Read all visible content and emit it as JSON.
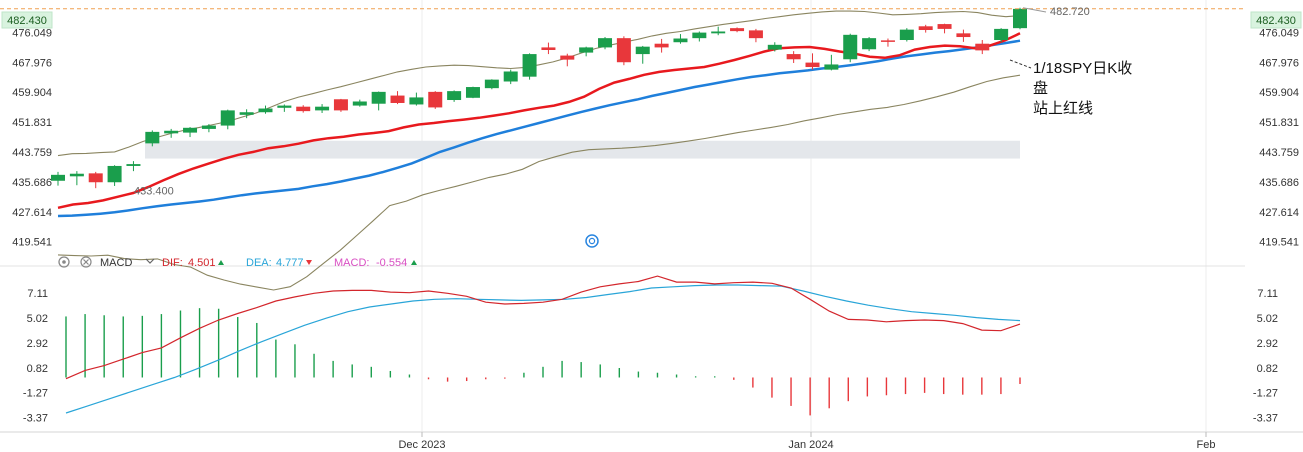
{
  "chart_data": {
    "type": "candlestick",
    "price_axis": {
      "ticks": [
        "482.430",
        "476.049",
        "467.976",
        "459.904",
        "451.831",
        "443.759",
        "435.686",
        "427.614",
        "419.541"
      ],
      "range": [
        416.5,
        484.8
      ],
      "last_price_label": "482.430",
      "last_price": 482.43
    },
    "annotations": {
      "high_label": "482.720",
      "high_value": 482.72,
      "low_label": "433.400",
      "low_value": 433.4,
      "note_lines": [
        "1/18SPY日K收",
        "盘",
        "站上红线"
      ]
    },
    "zone": {
      "from": 442.0,
      "to": 446.8
    },
    "candles": [
      {
        "o": 436.0,
        "c": 437.6,
        "h": 438.4,
        "l": 434.7
      },
      {
        "o": 437.2,
        "c": 437.9,
        "h": 438.6,
        "l": 434.8
      },
      {
        "o": 438.0,
        "c": 435.6,
        "h": 438.4,
        "l": 434.0
      },
      {
        "o": 435.6,
        "c": 440.0,
        "h": 440.2,
        "l": 434.6
      },
      {
        "o": 440.0,
        "c": 440.5,
        "h": 441.3,
        "l": 438.6
      },
      {
        "o": 446.1,
        "c": 449.2,
        "h": 449.6,
        "l": 445.3
      },
      {
        "o": 448.8,
        "c": 449.5,
        "h": 450.0,
        "l": 447.6
      },
      {
        "o": 449.0,
        "c": 450.3,
        "h": 450.5,
        "l": 447.8
      },
      {
        "o": 450.0,
        "c": 450.9,
        "h": 451.3,
        "l": 449.1
      },
      {
        "o": 450.9,
        "c": 455.0,
        "h": 455.2,
        "l": 449.9
      },
      {
        "o": 453.8,
        "c": 454.5,
        "h": 455.3,
        "l": 452.9
      },
      {
        "o": 454.5,
        "c": 455.5,
        "h": 456.3,
        "l": 454.1
      },
      {
        "o": 455.7,
        "c": 456.3,
        "h": 456.6,
        "l": 454.6
      },
      {
        "o": 456.0,
        "c": 454.8,
        "h": 456.4,
        "l": 454.4
      },
      {
        "o": 455.0,
        "c": 456.0,
        "h": 456.7,
        "l": 454.3
      },
      {
        "o": 458.0,
        "c": 455.0,
        "h": 458.1,
        "l": 454.6
      },
      {
        "o": 456.3,
        "c": 457.4,
        "h": 457.9,
        "l": 456.0
      },
      {
        "o": 456.8,
        "c": 460.0,
        "h": 460.1,
        "l": 455.0
      },
      {
        "o": 459.0,
        "c": 457.0,
        "h": 460.2,
        "l": 456.7
      },
      {
        "o": 456.6,
        "c": 458.5,
        "h": 459.8,
        "l": 456.3
      },
      {
        "o": 460.0,
        "c": 455.8,
        "h": 460.2,
        "l": 455.4
      },
      {
        "o": 457.8,
        "c": 460.2,
        "h": 460.4,
        "l": 457.3
      },
      {
        "o": 458.4,
        "c": 461.3,
        "h": 461.4,
        "l": 458.3
      },
      {
        "o": 461.0,
        "c": 463.3,
        "h": 463.4,
        "l": 460.7
      },
      {
        "o": 462.8,
        "c": 465.5,
        "h": 466.0,
        "l": 462.1
      },
      {
        "o": 464.1,
        "c": 470.2,
        "h": 470.4,
        "l": 463.3
      },
      {
        "o": 472.0,
        "c": 471.3,
        "h": 473.3,
        "l": 470.2
      },
      {
        "o": 469.8,
        "c": 468.7,
        "h": 470.3,
        "l": 466.9
      },
      {
        "o": 470.6,
        "c": 472.0,
        "h": 472.2,
        "l": 469.6
      },
      {
        "o": 472.0,
        "c": 474.5,
        "h": 474.8,
        "l": 471.5
      },
      {
        "o": 474.5,
        "c": 468.0,
        "h": 475.0,
        "l": 467.2
      },
      {
        "o": 470.2,
        "c": 472.2,
        "h": 472.4,
        "l": 467.6
      },
      {
        "o": 473.0,
        "c": 472.0,
        "h": 474.3,
        "l": 470.6
      },
      {
        "o": 473.4,
        "c": 474.4,
        "h": 475.6,
        "l": 473.0
      },
      {
        "o": 474.5,
        "c": 476.0,
        "h": 476.3,
        "l": 473.6
      },
      {
        "o": 475.8,
        "c": 476.3,
        "h": 477.6,
        "l": 475.3
      },
      {
        "o": 477.2,
        "c": 476.4,
        "h": 477.4,
        "l": 476.1
      },
      {
        "o": 476.6,
        "c": 474.5,
        "h": 477.0,
        "l": 473.4
      },
      {
        "o": 471.4,
        "c": 472.7,
        "h": 473.4,
        "l": 470.9
      },
      {
        "o": 470.2,
        "c": 468.8,
        "h": 471.0,
        "l": 467.8
      },
      {
        "o": 467.9,
        "c": 466.7,
        "h": 470.4,
        "l": 466.0
      },
      {
        "o": 466.0,
        "c": 467.4,
        "h": 470.0,
        "l": 465.8
      },
      {
        "o": 468.8,
        "c": 475.4,
        "h": 475.7,
        "l": 468.0
      },
      {
        "o": 471.5,
        "c": 474.5,
        "h": 474.8,
        "l": 471.0
      },
      {
        "o": 473.9,
        "c": 473.5,
        "h": 474.4,
        "l": 472.2
      },
      {
        "o": 474.0,
        "c": 476.8,
        "h": 477.2,
        "l": 473.6
      },
      {
        "o": 477.7,
        "c": 476.7,
        "h": 478.1,
        "l": 476.0
      },
      {
        "o": 478.3,
        "c": 477.0,
        "h": 478.4,
        "l": 475.8
      },
      {
        "o": 475.8,
        "c": 474.8,
        "h": 476.8,
        "l": 473.5
      },
      {
        "o": 473.0,
        "c": 471.2,
        "h": 474.0,
        "l": 470.2
      },
      {
        "o": 474.0,
        "c": 477.0,
        "h": 477.2,
        "l": 473.4
      },
      {
        "o": 477.2,
        "c": 482.4,
        "h": 482.7,
        "l": 476.9
      }
    ],
    "red_line": [
      428.7,
      429.6,
      430.0,
      430.7,
      431.7,
      432.7,
      434.3,
      436.1,
      437.8,
      439.3,
      440.6,
      441.9,
      443.0,
      443.8,
      444.8,
      445.3,
      446.0,
      446.9,
      447.5,
      447.9,
      448.5,
      448.9,
      449.4,
      450.4,
      451.2,
      451.6,
      452.1,
      452.5,
      453.0,
      453.6,
      454.2,
      455.0,
      455.7,
      456.3,
      457.3,
      458.7,
      460.8,
      462.5,
      463.5,
      464.6,
      465.4,
      465.9,
      466.3,
      466.7,
      467.6,
      468.6,
      469.7,
      470.9,
      471.8,
      472.0,
      472.1,
      471.6,
      470.9,
      470.3,
      469.5,
      469.2,
      469.9,
      471.4,
      472.1,
      472.5,
      472.3,
      471.8,
      472.5,
      473.9,
      475.8
    ],
    "blue_line": [
      426.5,
      426.6,
      426.8,
      427.1,
      427.5,
      428.0,
      428.6,
      429.1,
      429.6,
      430.0,
      430.4,
      430.9,
      431.5,
      432.1,
      432.6,
      433.0,
      433.4,
      433.8,
      434.5,
      435.1,
      435.8,
      436.6,
      437.4,
      438.4,
      439.5,
      440.7,
      442.2,
      443.8,
      445.0,
      446.3,
      447.5,
      448.6,
      449.6,
      450.6,
      451.6,
      452.6,
      453.6,
      454.6,
      455.5,
      456.4,
      457.2,
      458.0,
      458.9,
      459.7,
      460.5,
      461.3,
      462.0,
      462.7,
      463.4,
      464.0,
      464.5,
      465.0,
      465.4,
      465.8,
      466.3,
      466.7,
      467.2,
      467.7,
      468.3,
      469.0,
      469.6,
      470.1,
      470.6,
      471.0,
      471.5,
      472.0,
      472.6,
      473.2,
      473.8
    ],
    "boll_upper": [
      442.8,
      443.3,
      443.4,
      443.6,
      443.8,
      445.1,
      446.6,
      447.7,
      448.8,
      449.7,
      450.4,
      451.2,
      452.0,
      453.2,
      454.3,
      455.8,
      457.4,
      458.6,
      459.5,
      460.5,
      461.4,
      462.4,
      463.4,
      464.4,
      465.4,
      466.1,
      466.7,
      467.0,
      467.2,
      467.1,
      466.8,
      466.5,
      466.3,
      466.6,
      467.3,
      468.1,
      469.2,
      470.5,
      471.7,
      472.6,
      473.4,
      474.2,
      475.1,
      475.8,
      476.3,
      477.0,
      477.6,
      478.2,
      478.7,
      479.2,
      479.8,
      480.3,
      480.8,
      481.2,
      481.6,
      481.8,
      481.8,
      481.7,
      481.3,
      480.8,
      480.9,
      481.1,
      481.4,
      481.6,
      481.7,
      481.4,
      480.7,
      480.3,
      480.6
    ],
    "boll_lower": [
      416.0,
      415.8,
      415.7,
      415.9,
      415.0,
      414.7,
      414.9,
      413.4,
      412.7,
      410.5,
      409.2,
      408.1,
      407.3,
      406.5,
      407.4,
      410.1,
      413.7,
      417.2,
      421.2,
      425.2,
      429.3,
      430.5,
      432.2,
      433.4,
      434.5,
      435.7,
      436.9,
      437.8,
      439.1,
      441.2,
      442.5,
      443.7,
      444.4,
      444.6,
      444.8,
      445.1,
      445.5,
      446.1,
      446.7,
      447.4,
      448.2,
      449.0,
      449.7,
      450.4,
      451.2,
      452.2,
      453.0,
      453.9,
      454.6,
      455.3,
      455.8,
      456.6,
      457.6,
      458.7,
      459.9,
      461.4,
      462.8,
      463.8,
      464.5
    ],
    "macd": {
      "ticks": [
        "7.11",
        "5.02",
        "2.92",
        "0.82",
        "-1.27",
        "-3.37"
      ],
      "range": [
        -4.6,
        8.9
      ],
      "labels": {
        "name": "MACD",
        "dif_name": "DIF:",
        "dif": "4.501",
        "dea_name": "DEA:",
        "dea": "4.777",
        "hist_name": "MACD:",
        "hist": "-0.554"
      },
      "dif_line": [
        -0.1,
        0.6,
        1.0,
        1.55,
        2.1,
        2.5,
        3.35,
        4.15,
        4.85,
        5.4,
        5.9,
        6.45,
        6.8,
        7.1,
        7.3,
        7.35,
        7.35,
        7.2,
        7.15,
        7.3,
        7.1,
        6.85,
        6.35,
        6.2,
        6.25,
        6.35,
        6.6,
        7.2,
        7.65,
        7.9,
        8.1,
        8.55,
        8.05,
        8.05,
        7.9,
        8.0,
        8.05,
        7.95,
        7.55,
        6.6,
        5.6,
        4.9,
        4.85,
        4.7,
        4.8,
        4.85,
        4.8,
        4.55,
        4.0,
        3.95,
        4.5
      ],
      "dea_line": [
        -3.0,
        -2.4,
        -1.8,
        -1.2,
        -0.6,
        0.0,
        0.7,
        1.45,
        2.25,
        3.0,
        3.7,
        4.4,
        5.0,
        5.55,
        5.95,
        6.2,
        6.45,
        6.6,
        6.65,
        6.6,
        6.55,
        6.5,
        6.55,
        6.6,
        6.75,
        7.0,
        7.25,
        7.55,
        7.65,
        7.75,
        7.8,
        7.8,
        7.75,
        7.7,
        7.3,
        6.85,
        6.45,
        6.1,
        5.8,
        5.55,
        5.4,
        5.25,
        5.05,
        4.9,
        4.8
      ],
      "histogram": [
        5.15,
        5.35,
        5.25,
        5.15,
        5.2,
        5.35,
        5.65,
        5.85,
        5.8,
        5.1,
        4.6,
        3.2,
        2.8,
        2.0,
        1.4,
        1.1,
        0.9,
        0.55,
        0.25,
        -0.15,
        -0.35,
        -0.3,
        -0.15,
        -0.1,
        0.4,
        0.9,
        1.4,
        1.3,
        1.1,
        0.8,
        0.5,
        0.4,
        0.25,
        0.1,
        0.1,
        -0.2,
        -0.85,
        -1.7,
        -2.4,
        -3.2,
        -2.6,
        -2.0,
        -1.6,
        -1.5,
        -1.4,
        -1.3,
        -1.4,
        -1.45,
        -1.45,
        -1.4,
        -0.55
      ]
    },
    "x_axis": {
      "labels": [
        "Dec 2023",
        "Jan 2024",
        "Feb"
      ]
    }
  },
  "colors": {
    "up": "#1a9e4c",
    "down": "#e8373b",
    "red_line": "#e8191e",
    "blue_line": "#1f7fdb",
    "boll": "#8a8560",
    "dif": "#d3262c",
    "dea": "#29a5d8",
    "hist_up": "#1a9e4c",
    "hist_down": "#e8373b",
    "macd_label": "#d94fc3"
  },
  "icons": [
    "settings-icon",
    "close-icon",
    "chevron-down-icon",
    "target-icon"
  ]
}
